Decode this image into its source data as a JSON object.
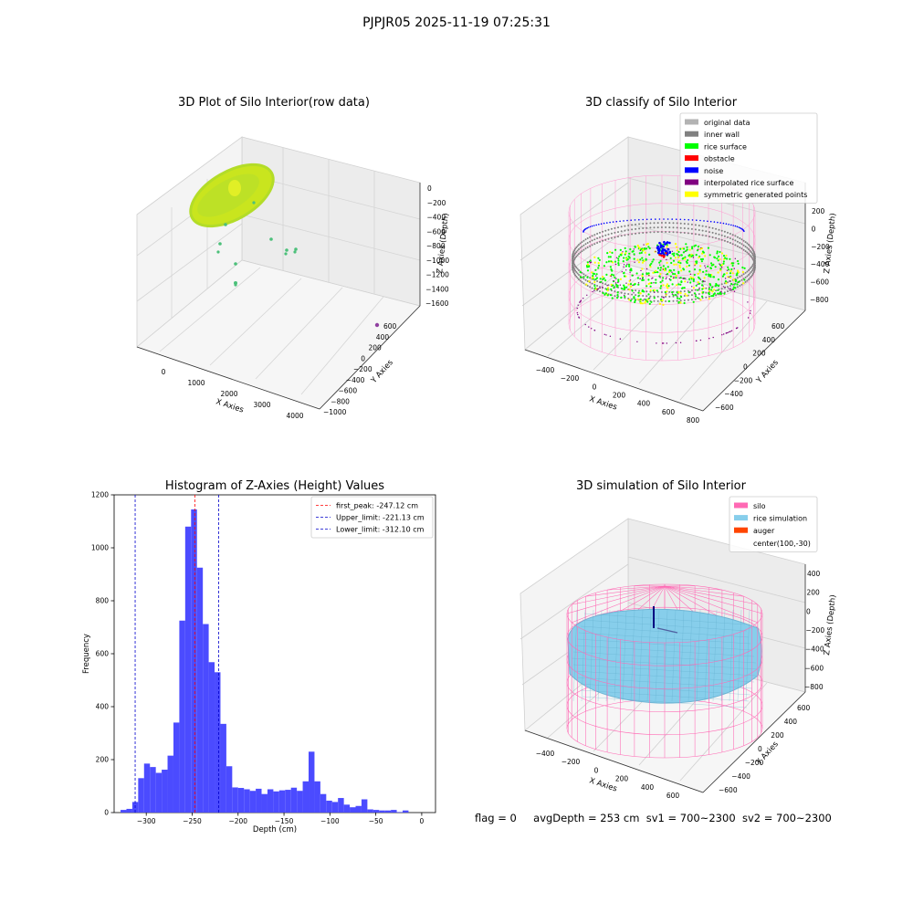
{
  "figure": {
    "suptitle": "PJPJR05 2025-11-19 07:25:31",
    "status": {
      "flag": "flag = 0",
      "avg_depth": "avgDepth = 253 cm",
      "sv1": "sv1 = 700~2300",
      "sv2": "sv2 = 700~2300"
    }
  },
  "panels": {
    "raw": {
      "title": "3D Plot of Silo Interior(row data)",
      "xlabel": "X Axies",
      "ylabel": "Y Axies",
      "zlabel": "Z Axies (Depth)",
      "xticks": [
        "0",
        "1000",
        "2000",
        "3000",
        "4000"
      ],
      "yticks": [
        "600",
        "400",
        "200",
        "0",
        "−200",
        "−400",
        "−600",
        "−800",
        "−1000"
      ],
      "zticks": [
        "0",
        "−200",
        "−400",
        "−600",
        "−800",
        "−1000",
        "−1200",
        "−1400",
        "−1600"
      ],
      "colors": {
        "surface": "#c8e61e",
        "surface_dark": "#9ad43a",
        "outlier": "#4cc07a",
        "far_point": "#9040a0"
      }
    },
    "classify": {
      "title": "3D classify of Silo Interior",
      "xlabel": "X Axies",
      "ylabel": "Y Axies",
      "zlabel": "Z Axies (Depth)",
      "xticks": [
        "−400",
        "−200",
        "0",
        "200",
        "400",
        "600",
        "800"
      ],
      "yticks": [
        "600",
        "400",
        "200",
        "0",
        "−200",
        "−400",
        "−600"
      ],
      "zticks": [
        "200",
        "0",
        "−200",
        "−400",
        "−600",
        "−800"
      ],
      "legend": [
        {
          "label": "original data",
          "color": "#b3b3b3"
        },
        {
          "label": "inner wall",
          "color": "#808080"
        },
        {
          "label": "rice surface",
          "color": "#00ff00"
        },
        {
          "label": "obstacle",
          "color": "#ff0000"
        },
        {
          "label": "noise",
          "color": "#0000ff"
        },
        {
          "label": "interpolated rice surface",
          "color": "#800080"
        },
        {
          "label": "symmetric generated points",
          "color": "#ffff00"
        }
      ],
      "wire_color": "#ff9ad0"
    },
    "simulation": {
      "title": "3D simulation of Silo Interior",
      "xlabel": "X Axies",
      "ylabel": "Y Axies",
      "zlabel": "Z Axies (Depth)",
      "xticks": [
        "−400",
        "−200",
        "0",
        "200",
        "400",
        "600"
      ],
      "yticks": [
        "600",
        "400",
        "200",
        "0",
        "−200",
        "−400",
        "−600"
      ],
      "zticks": [
        "400",
        "200",
        "0",
        "−200",
        "−400",
        "−600",
        "−800"
      ],
      "legend": [
        {
          "label": "silo",
          "color": "#ff69b4"
        },
        {
          "label": "rice simulation",
          "color": "#87ceeb"
        },
        {
          "label": "auger",
          "color": "#ff4500"
        },
        {
          "label": "center(100,-30)",
          "color": ""
        }
      ],
      "auger_color": "#000080"
    }
  },
  "chart_data": {
    "type": "bar",
    "title": "Histogram of Z-Axies (Height) Values",
    "xlabel": "Depth (cm)",
    "ylabel": "Frequency",
    "xlim": [
      -335,
      15
    ],
    "ylim": [
      0,
      1200
    ],
    "xticks": [
      -300,
      -250,
      -200,
      -150,
      -100,
      -50,
      0
    ],
    "xtick_labels": [
      "−300",
      "−250",
      "−200",
      "−150",
      "−100",
      "−50",
      "0"
    ],
    "yticks": [
      0,
      200,
      400,
      600,
      800,
      1000,
      1200
    ],
    "bar_color": "#4b4bff",
    "bin_start": -328,
    "bin_width": 6.4,
    "values": [
      10,
      14,
      40,
      130,
      185,
      172,
      150,
      162,
      215,
      340,
      725,
      1080,
      1145,
      925,
      712,
      568,
      530,
      335,
      175,
      95,
      93,
      88,
      82,
      90,
      70,
      88,
      80,
      84,
      86,
      94,
      82,
      118,
      230,
      118,
      70,
      45,
      40,
      55,
      30,
      20,
      25,
      50,
      12,
      10,
      8,
      8,
      10,
      2,
      8
    ],
    "vlines": [
      {
        "label": "first_peak: -247.12 cm",
        "x": -247.12,
        "color": "#ff0000"
      },
      {
        "label": "Upper_limit: -221.13 cm",
        "x": -221.13,
        "color": "#0000cc"
      },
      {
        "label": "Lower_limit: -312.10 cm",
        "x": -312.1,
        "color": "#0000cc"
      }
    ],
    "legend_position": "upper right",
    "grid": false
  }
}
